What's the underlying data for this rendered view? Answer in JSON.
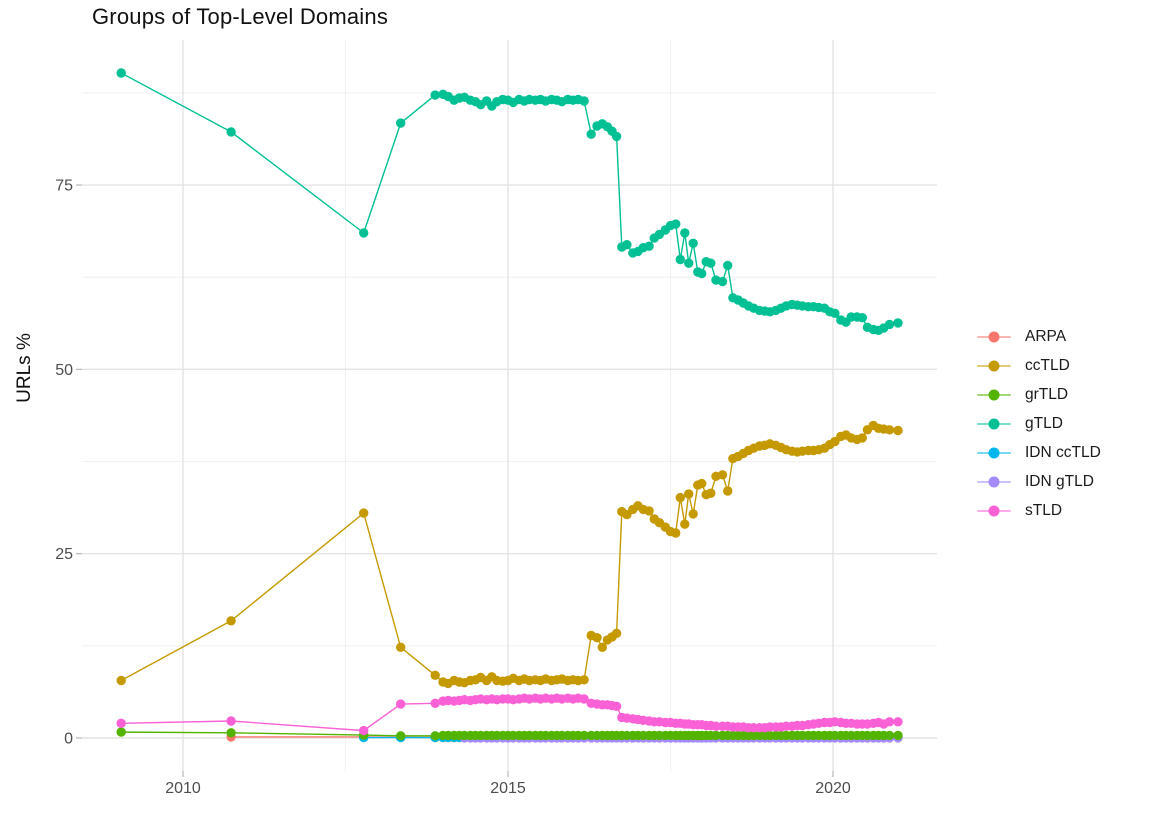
{
  "title": "Groups of Top-Level Domains",
  "y_axis_label": "URLs %",
  "chart_data": {
    "type": "line",
    "title": "Groups of Top-Level Domains",
    "xlabel": "",
    "ylabel": "URLs %",
    "x_ticks": [
      2010,
      2015,
      2020
    ],
    "y_ticks": [
      0,
      25,
      50,
      75
    ],
    "xlim": [
      2008.45,
      2021.65
    ],
    "ylim": [
      -4.5,
      94.7
    ],
    "grid": "major+minor",
    "legend_position": "right",
    "x_head": [
      2009.05,
      2010.74,
      2012.78,
      2013.35,
      2013.88
    ],
    "x_monthly": [
      2014.0,
      2014.08,
      2014.17,
      2014.25,
      2014.33,
      2014.42,
      2014.5,
      2014.58,
      2014.67,
      2014.75,
      2014.83,
      2014.92,
      2015.0,
      2015.08,
      2015.17,
      2015.25,
      2015.33,
      2015.42,
      2015.5,
      2015.58,
      2015.67,
      2015.75,
      2015.83,
      2015.92,
      2016.0,
      2016.08,
      2016.17,
      2016.28,
      2016.37,
      2016.45,
      2016.53,
      2016.6,
      2016.67,
      2016.75,
      2016.83,
      2016.92,
      2017.0,
      2017.08,
      2017.17,
      2017.25,
      2017.33,
      2017.42,
      2017.5,
      2017.58,
      2017.65,
      2017.72,
      2017.78,
      2017.85,
      2017.92,
      2017.98,
      2018.05,
      2018.12,
      2018.2,
      2018.3,
      2018.38,
      2018.46,
      2018.54,
      2018.62,
      2018.7,
      2018.78,
      2018.87,
      2018.95,
      2019.03,
      2019.12,
      2019.2,
      2019.28,
      2019.37,
      2019.45,
      2019.53,
      2019.62,
      2019.7,
      2019.78,
      2019.87,
      2019.95,
      2020.03,
      2020.12,
      2020.2,
      2020.28,
      2020.37,
      2020.45,
      2020.53,
      2020.62,
      2020.7,
      2020.78,
      2020.87,
      2021.0
    ],
    "series": [
      {
        "name": "ARPA",
        "color": "#F8766D",
        "head_x": [
          2010.74,
          2012.78,
          2013.35,
          2013.88
        ],
        "head_y": [
          0.15,
          0.15,
          0.1,
          0.07
        ],
        "monthly_y_const": 0.05
      },
      {
        "name": "ccTLD",
        "color": "#C49A00",
        "head_y": [
          7.8,
          15.9,
          30.5,
          12.3,
          8.5
        ],
        "monthly_y": [
          7.6,
          7.4,
          7.8,
          7.6,
          7.5,
          7.8,
          7.9,
          8.2,
          7.8,
          8.3,
          7.8,
          7.7,
          7.8,
          8.1,
          7.8,
          8.0,
          7.8,
          7.9,
          7.8,
          8.0,
          7.8,
          7.9,
          8.0,
          7.8,
          7.9,
          7.8,
          7.9,
          13.9,
          13.6,
          12.3,
          13.3,
          13.7,
          14.2,
          30.7,
          30.3,
          31.0,
          31.5,
          31.0,
          30.8,
          29.7,
          29.2,
          28.6,
          28.0,
          27.8,
          32.6,
          29.0,
          33.1,
          30.4,
          34.3,
          34.5,
          33.0,
          33.2,
          35.5,
          35.7,
          33.5,
          37.9,
          38.2,
          38.6,
          39.0,
          39.3,
          39.6,
          39.7,
          39.9,
          39.7,
          39.4,
          39.1,
          38.9,
          38.8,
          38.9,
          39.0,
          39.0,
          39.1,
          39.3,
          39.8,
          40.2,
          40.9,
          41.1,
          40.7,
          40.5,
          40.7,
          41.8,
          42.4,
          42.0,
          41.9,
          41.8,
          41.7
        ]
      },
      {
        "name": "grTLD",
        "color": "#53B400",
        "head_y": [
          0.8,
          0.7,
          0.4,
          0.3,
          0.3
        ],
        "monthly_y_const": 0.35
      },
      {
        "name": "gTLD",
        "color": "#00C094",
        "head_y": [
          90.2,
          82.2,
          68.5,
          83.4,
          87.2
        ],
        "monthly_y": [
          87.3,
          87.0,
          86.5,
          86.8,
          86.9,
          86.5,
          86.3,
          85.9,
          86.4,
          85.7,
          86.3,
          86.6,
          86.5,
          86.2,
          86.6,
          86.4,
          86.6,
          86.5,
          86.6,
          86.4,
          86.6,
          86.5,
          86.3,
          86.6,
          86.5,
          86.6,
          86.4,
          81.9,
          83.0,
          83.3,
          82.9,
          82.3,
          81.6,
          66.6,
          66.9,
          65.8,
          66.0,
          66.5,
          66.7,
          67.8,
          68.3,
          68.9,
          69.5,
          69.7,
          64.9,
          68.5,
          64.4,
          67.1,
          63.2,
          63.0,
          64.6,
          64.4,
          62.1,
          61.9,
          64.1,
          59.7,
          59.4,
          59.0,
          58.6,
          58.3,
          58.0,
          57.9,
          57.8,
          58.0,
          58.3,
          58.6,
          58.8,
          58.7,
          58.6,
          58.5,
          58.5,
          58.4,
          58.3,
          57.8,
          57.6,
          56.7,
          56.4,
          57.1,
          57.1,
          57.0,
          55.7,
          55.4,
          55.3,
          55.6,
          56.1,
          56.3
        ]
      },
      {
        "name": "IDN ccTLD",
        "color": "#00B6EB",
        "head_x": [
          2012.78,
          2013.35,
          2013.88
        ],
        "head_y": [
          0.05,
          0.05,
          0.05
        ],
        "monthly_y_const": 0.08
      },
      {
        "name": "IDN gTLD",
        "color": "#A58AFF",
        "head_x": [],
        "head_y": [],
        "monthly_y_const": 0.02,
        "monthly_start": 2014.33
      },
      {
        "name": "sTLD",
        "color": "#FB61D7",
        "head_y": [
          2.0,
          2.3,
          1.0,
          4.6,
          4.7
        ],
        "monthly_y": [
          5.0,
          5.1,
          5.0,
          5.1,
          5.2,
          5.1,
          5.2,
          5.3,
          5.2,
          5.3,
          5.2,
          5.3,
          5.3,
          5.2,
          5.3,
          5.4,
          5.3,
          5.4,
          5.3,
          5.4,
          5.3,
          5.4,
          5.3,
          5.4,
          5.3,
          5.4,
          5.3,
          4.7,
          4.6,
          4.5,
          4.5,
          4.4,
          4.3,
          2.8,
          2.7,
          2.6,
          2.5,
          2.4,
          2.3,
          2.2,
          2.2,
          2.1,
          2.1,
          2.0,
          2.0,
          1.9,
          1.9,
          1.8,
          1.8,
          1.8,
          1.7,
          1.7,
          1.6,
          1.6,
          1.6,
          1.5,
          1.5,
          1.5,
          1.4,
          1.4,
          1.4,
          1.4,
          1.5,
          1.5,
          1.5,
          1.6,
          1.6,
          1.7,
          1.7,
          1.8,
          1.9,
          2.0,
          2.1,
          2.1,
          2.2,
          2.1,
          2.0,
          2.0,
          1.9,
          1.9,
          1.9,
          2.0,
          2.1,
          1.9,
          2.2,
          2.2
        ]
      }
    ],
    "draw_order": [
      "ARPA",
      "IDN ccTLD",
      "IDN gTLD",
      "grTLD",
      "ccTLD",
      "gTLD",
      "sTLD"
    ],
    "colors": {
      "major_gridline": "#e4e4e4",
      "minor_gridline": "#f1f1f1",
      "tick_mark": "#b8b8b8",
      "tick_label": "#4d4d4d",
      "text": "#111111"
    }
  }
}
